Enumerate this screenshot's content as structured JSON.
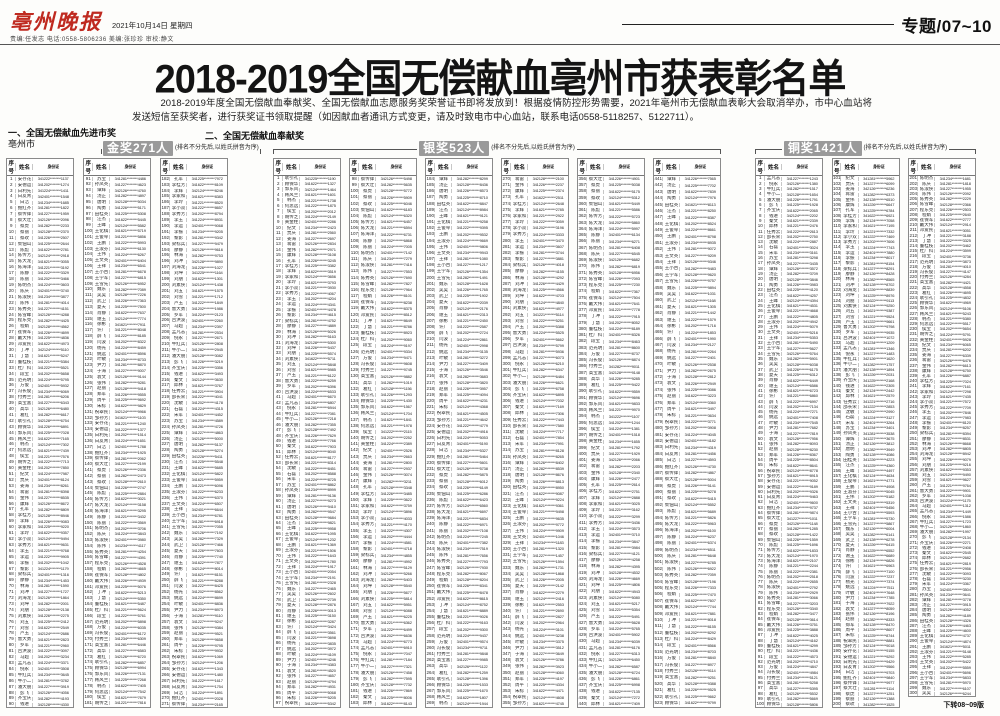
{
  "masthead": {
    "logo": "亳州晚报",
    "date_line": "2021年10月14日 星期四",
    "credits": "责编:任发志 电话:0558-5806236 美编:张珍珍 审校:静文",
    "page_label": "专题/07~10",
    "logo_color": "#bf2a20"
  },
  "title": "2018-2019全国无偿献血亳州市获表彰名单",
  "intro": "2018-2019年度全国无偿献血奉献奖、全国无偿献血志愿服务奖荣誉证书即将发放到！根据疫情防控形势需要，2021年亳州市无偿献血表彰大会取消举办，市中心血站将发送短信至获奖者，进行获奖证书领取提醒（如因献血者通讯方式变更，请及时致电市中心血站，联系电话0558-5118257、5122711）。",
  "sections": {
    "one_label": "一、全国无偿献血先进市奖",
    "one_value": "亳州市",
    "two_label": "二、全国无偿献血奉献奖"
  },
  "table": {
    "headers": [
      "序号",
      "姓名",
      "身份证"
    ]
  },
  "awards": [
    {
      "id": "gold",
      "badge": "金奖271人",
      "note": "(排名不分先后,以姓氏拼音为序)",
      "columns": [
        {
          "start": 1,
          "end": 90
        },
        {
          "start": 91,
          "end": 181
        },
        {
          "start": 182,
          "end": 271
        }
      ]
    },
    {
      "id": "silver",
      "badge": "银奖523人",
      "note": "(排名不分先后,以姓氏拼音为序)",
      "columns": [
        {
          "start": 1,
          "end": 97
        },
        {
          "start": 98,
          "end": 183
        },
        {
          "start": 184,
          "end": 269
        },
        {
          "start": 270,
          "end": 355
        },
        {
          "start": 356,
          "end": 440
        },
        {
          "start": 441,
          "end": 523
        }
      ]
    },
    {
      "id": "bronze",
      "badge": "铜奖1421人",
      "note": "(排名不分先后,以姓氏拼音为序)",
      "columns": [
        {
          "start": 1,
          "end": 100
        },
        {
          "start": 101,
          "end": 200
        },
        {
          "start": 201,
          "end": 300
        }
      ]
    }
  ],
  "names": [
    "安存花",
    "安德运",
    "白利先",
    "白友青",
    "白洁",
    "鲍红齐",
    "蔡传锋",
    "蔡大壮",
    "蔡虎",
    "蔡丽",
    "蔡玫",
    "柴佃山",
    "陈彪",
    "陈传芳",
    "陈大龙",
    "陈海洋",
    "陈静",
    "陈丽",
    "陈明杰",
    "陈庆",
    "陈淑侠",
    "陈伟",
    "陈秀英",
    "陈雪峰",
    "程东亮",
    "程娟",
    "崔保军",
    "戴大伟",
    "邓爱民",
    "丁冲",
    "丁慧",
    "董桂枝",
    "杜广科",
    "段宝",
    "范光明",
    "方俊",
    "冯长俊",
    "付秀兰",
    "高宝富",
    "高华",
    "葛红",
    "耿引礼",
    "顾保华",
    "郭东风",
    "韩风兰",
    "韩杰",
    "何思远",
    "侯宝",
    "胡传芝",
    "黄金柱",
    "纪文",
    "贾庆",
    "姜海",
    "蒋雷",
    "金伟",
    "康辉",
    "孔军",
    "李桂芳",
    "李辉",
    "李家和",
    "李玲",
    "李小双",
    "李秀芳",
    "李玉",
    "李运",
    "李振",
    "黎影",
    "梁标兵",
    "廖静",
    "林海",
    "刘冲",
    "刘海龙",
    "刘坤",
    "刘朋",
    "刘素侠",
    "刘五",
    "刘雪",
    "卢玉",
    "鲁大勇",
    "罗军",
    "吕洪波",
    "马超",
    "孟凡志",
    "倪永",
    "牛红兵",
    "牛小二",
    "潘大朋",
    "彭飞",
    "齐宝庆",
    "钱进",
    "秦文",
    "邱林",
    "任秀云",
    "邵长荣",
    "沈敏",
    "石磊",
    "宋军",
    "苏宝",
    "孙凤英",
    "谭辉",
    "汤正",
    "唐明",
    "陶勇",
    "田桂英",
    "汪杰",
    "王峰",
    "王化棋",
    "王俊琴",
    "王鹏",
    "王淑芬",
    "王伟",
    "王文英",
    "王祥",
    "王小古",
    "王学军",
    "王雪先",
    "魏东",
    "吴昊",
    "武卫",
    "夏天",
    "肖静",
    "谢玉",
    "徐彬",
    "许广",
    "薛飞",
    "闫波",
    "杨光",
    "姚远",
    "叶敏",
    "尹力",
    "于海",
    "袁文",
    "张伟",
    "赵丽",
    "郑军",
    "周平",
    "朱标",
    "祝翠民",
    "邹孙芳"
  ],
  "id_prefixes": [
    "341221",
    "341226",
    "341281",
    "341222",
    "341225",
    "341227",
    "341202",
    "341622",
    "342126",
    "341224",
    "342124",
    "341282",
    "342401",
    "341621",
    "342128",
    "341234"
  ],
  "id_mask": "********",
  "footer": {
    "continued": "下转08~09版"
  }
}
